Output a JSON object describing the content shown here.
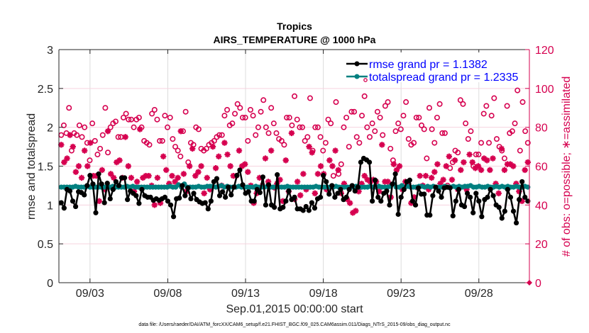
{
  "chart_data": {
    "type": "line",
    "title": "Tropics",
    "subtitle": "AIRS_TEMPERATURE @ 1000 hPa",
    "xlabel": "Sep.01,2015 00:00:00 start",
    "ylabel": "rmse and totalspread",
    "ylabel_right": "# of obs: o=possible; ∗=assimilated",
    "footer": "data file: /Users/raeder/DAI/ATM_forcXX/CAM6_setup/f.e21.FHIST_BGC.f09_025.CAM6assim.011/Diags_NTrS_2015-09/obs_diag_output.nc",
    "xlim_days": [
      0,
      30.25
    ],
    "x_ticks": [
      {
        "day": 2,
        "label": "09/03"
      },
      {
        "day": 7,
        "label": "09/08"
      },
      {
        "day": 12,
        "label": "09/13"
      },
      {
        "day": 17,
        "label": "09/18"
      },
      {
        "day": 22,
        "label": "09/23"
      },
      {
        "day": 27,
        "label": "09/28"
      }
    ],
    "ylim": [
      0,
      3
    ],
    "y_ticks": [
      0,
      0.5,
      1,
      1.5,
      2,
      2.5,
      3
    ],
    "y_tick_labels": [
      "0",
      "0.5",
      "1",
      "1.5",
      "2",
      "2.5",
      "3"
    ],
    "ylim_right": [
      0,
      120
    ],
    "y_ticks_right": [
      0,
      20,
      40,
      60,
      80,
      100,
      120
    ],
    "y_tick_labels_right": [
      "0",
      "20",
      "40",
      "60",
      "80",
      "100",
      "120"
    ],
    "grid": true,
    "legend_position": "top-right",
    "legend": [
      {
        "label": "rmse grand pr = 1.1382",
        "color": "#000000"
      },
      {
        "label": "totalspread grand pr = 1.2335",
        "color": "#008080"
      }
    ],
    "x_start_day": 0,
    "x_step_days": 0.25,
    "series": [
      {
        "name": "rmse",
        "axis": "left",
        "color": "#000000",
        "values": [
          1.03,
          0.96,
          1.2,
          1.18,
          1.05,
          0.98,
          1.17,
          1.16,
          1.13,
          1.25,
          1.38,
          1.27,
          0.9,
          1.4,
          1.27,
          1.03,
          1.28,
          1.08,
          1.2,
          1.3,
          1.25,
          1.35,
          1.35,
          1.07,
          1.18,
          1.15,
          1.12,
          1.02,
          1.2,
          1.12,
          1.1,
          1.1,
          1.06,
          1.08,
          1.06,
          1.08,
          1.1,
          1.05,
          1.0,
          0.85,
          1.08,
          1.09,
          1.25,
          1.12,
          1.22,
          1.08,
          1.15,
          1.07,
          1.04,
          1.02,
          1.03,
          0.95,
          1.05,
          1.3,
          1.34,
          1.12,
          1.17,
          1.1,
          1.23,
          1.13,
          1.23,
          1.38,
          1.45,
          1.26,
          1.15,
          1.17,
          1.05,
          1.05,
          1.2,
          1.16,
          1.36,
          1.0,
          1.26,
          1.0,
          0.97,
          1.39,
          0.95,
          0.97,
          1.05,
          1.18,
          1.07,
          1.1,
          0.95,
          0.95,
          0.93,
          0.98,
          0.93,
          1.03,
          0.96,
          1.08,
          1.1,
          1.38,
          1.3,
          1.14,
          1.25,
          1.1,
          1.15,
          1.2,
          1.07,
          1.1,
          1.2,
          1.25,
          1.18,
          1.23,
          1.55,
          1.6,
          1.58,
          1.55,
          1.05,
          1.32,
          1.1,
          1.05,
          1.15,
          1.18,
          1.0,
          1.27,
          1.4,
          0.88,
          1.1,
          1.2
        ],
        "values_tail": [
          1.3,
          1.32,
          1.05,
          1.0,
          1.22,
          1.14,
          1.14,
          0.87,
          0.87,
          1.12,
          1.23,
          1.18,
          1.1,
          1.22,
          1.23,
          1.22,
          0.86,
          1.05,
          1.2,
          1.0,
          0.98,
          1.15,
          1.1,
          0.9,
          1.15,
          1.05,
          0.85,
          1.07,
          1.1,
          1.2,
          1.12,
          1.0,
          0.97,
          0.83,
          0.92,
          1.2,
          1.1,
          0.92,
          0.77,
          1.07,
          1.3,
          1.1,
          1.05
        ]
      },
      {
        "name": "totalspread",
        "axis": "left",
        "color": "#008080",
        "constant_level": 1.23,
        "values": [
          1.23,
          1.23,
          1.23,
          1.23,
          1.23,
          1.24,
          1.23,
          1.23,
          1.23,
          1.24,
          1.23,
          1.23,
          1.23,
          1.23,
          1.23,
          1.23,
          1.23,
          1.23,
          1.24,
          1.23,
          1.23,
          1.23,
          1.23,
          1.24,
          1.23,
          1.24,
          1.23,
          1.23,
          1.23,
          1.23,
          1.23,
          1.23,
          1.23,
          1.23,
          1.23,
          1.23,
          1.23,
          1.23,
          1.24,
          1.23,
          1.23,
          1.26,
          1.23,
          1.27,
          1.23,
          1.23,
          1.23,
          1.23,
          1.24,
          1.23,
          1.23,
          1.24,
          1.24,
          1.24,
          1.23,
          1.24,
          1.25,
          1.23,
          1.24,
          1.23,
          1.23,
          1.23,
          1.24,
          1.23,
          1.23,
          1.23,
          1.23,
          1.23,
          1.24,
          1.23,
          1.23,
          1.23,
          1.24,
          1.23,
          1.23,
          1.23,
          1.23,
          1.23,
          1.23,
          1.24,
          1.23,
          1.23,
          1.23,
          1.23,
          1.23,
          1.23,
          1.23,
          1.23,
          1.23,
          1.24,
          1.23,
          1.23,
          1.23,
          1.23,
          1.23,
          1.23,
          1.24,
          1.23,
          1.23,
          1.23,
          1.23,
          1.23,
          1.23,
          1.24,
          1.23,
          1.23,
          1.23,
          1.23,
          1.24,
          1.23,
          1.23,
          1.24,
          1.23,
          1.23,
          1.23,
          1.24,
          1.27,
          1.23,
          1.23,
          1.25,
          1.23,
          1.24,
          1.23,
          1.23,
          1.23,
          1.24,
          1.24,
          1.23,
          1.24,
          1.23,
          1.24,
          1.23,
          1.23,
          1.23,
          1.24,
          1.23,
          1.23,
          1.24,
          1.23,
          1.24,
          1.23,
          1.24,
          1.24,
          1.25,
          1.23,
          1.23,
          1.24,
          1.23,
          1.23,
          1.24,
          1.23,
          1.23,
          1.24,
          1.23,
          1.24,
          1.23,
          1.24,
          1.23,
          1.23,
          1.24,
          1.23,
          1.23,
          1.24,
          1.23
        ]
      },
      {
        "name": "# obs possible",
        "axis": "right",
        "marker": "circle",
        "color": "#d6004f",
        "values": [
          76,
          81,
          77,
          90,
          68,
          77,
          76,
          81,
          75,
          80,
          72,
          63,
          82,
          73,
          66,
          69,
          76,
          90,
          67,
          80,
          82,
          83,
          75,
          75,
          85,
          87,
          84,
          84,
          80,
          84,
          85,
          80,
          73,
          72,
          71,
          87,
          89,
          84,
          73,
          73,
          86,
          80,
          85,
          74,
          70,
          68,
          65,
          78,
          88,
          62,
          72,
          71,
          80,
          79,
          69,
          68,
          69,
          71,
          72,
          73,
          75,
          76,
          76,
          86,
          89,
          81,
          82,
          87,
          92,
          90,
          85,
          85,
          73,
          89,
          86,
          76,
          80,
          88,
          94,
          80,
          77,
          90,
          82,
          77,
          74,
          73,
          71,
          85,
          85,
          81,
          96,
          84,
          80,
          80,
          73,
          75,
          95,
          68,
          80,
          80,
          75,
          68,
          72,
          84,
          82,
          55,
          93,
          56,
          61,
          80,
          85,
          70,
          88,
          88,
          75,
          72,
          86,
          96,
          80,
          75,
          82,
          78,
          88,
          85,
          76,
          91,
          93,
          69,
          63,
          78,
          82,
          79,
          86,
          93,
          74,
          71,
          72,
          85,
          85,
          81,
          79,
          64,
          90,
          79,
          72,
          85,
          92,
          77,
          77,
          50,
          59,
          62,
          68,
          67,
          94,
          92,
          82,
          74,
          78,
          60,
          66,
          66,
          72,
          87,
          91,
          72,
          86,
          95,
          74,
          70,
          68,
          64,
          91,
          77,
          78,
          82,
          99,
          68,
          93,
          78,
          72
        ]
      },
      {
        "name": "# obs assimilated",
        "axis": "right",
        "marker": "asterisk",
        "color": "#d6004f",
        "values": [
          71,
          62,
          64,
          76,
          70,
          57,
          60,
          54,
          68,
          60,
          72,
          55,
          55,
          42,
          58,
          48,
          78,
          56,
          54,
          62,
          63,
          54,
          75,
          60,
          54,
          47,
          52,
          79,
          54,
          55,
          55,
          50,
          40,
          54,
          41,
          65,
          58,
          51,
          55,
          52,
          54,
          78,
          56,
          47,
          60,
          69,
          55,
          57,
          60,
          46,
          54,
          48,
          70,
          59,
          65,
          50,
          72,
          66,
          60,
          55,
          55,
          68,
          60,
          61,
          57,
          50,
          41,
          46,
          54,
          50,
          64,
          52,
          68,
          49,
          51,
          53,
          42,
          63,
          47,
          77,
          43,
          52,
          45,
          56,
          48,
          70,
          67,
          46,
          56,
          60,
          56,
          48,
          63,
          60,
          68,
          58,
          46,
          51,
          43,
          41,
          36,
          37,
          47,
          51,
          55,
          53,
          52,
          53,
          52,
          47,
          71,
          52,
          52,
          44,
          61,
          58,
          60,
          48,
          52,
          51,
          41,
          44,
          49,
          55,
          50,
          55,
          48,
          54,
          57,
          61,
          51,
          53,
          60,
          65,
          53,
          63,
          48,
          58,
          62,
          48,
          66,
          62,
          59,
          60,
          58,
          64,
          63,
          58,
          64,
          51,
          46,
          69,
          58,
          61,
          61,
          60,
          51,
          47,
          42,
          58,
          62
        ]
      }
    ]
  }
}
